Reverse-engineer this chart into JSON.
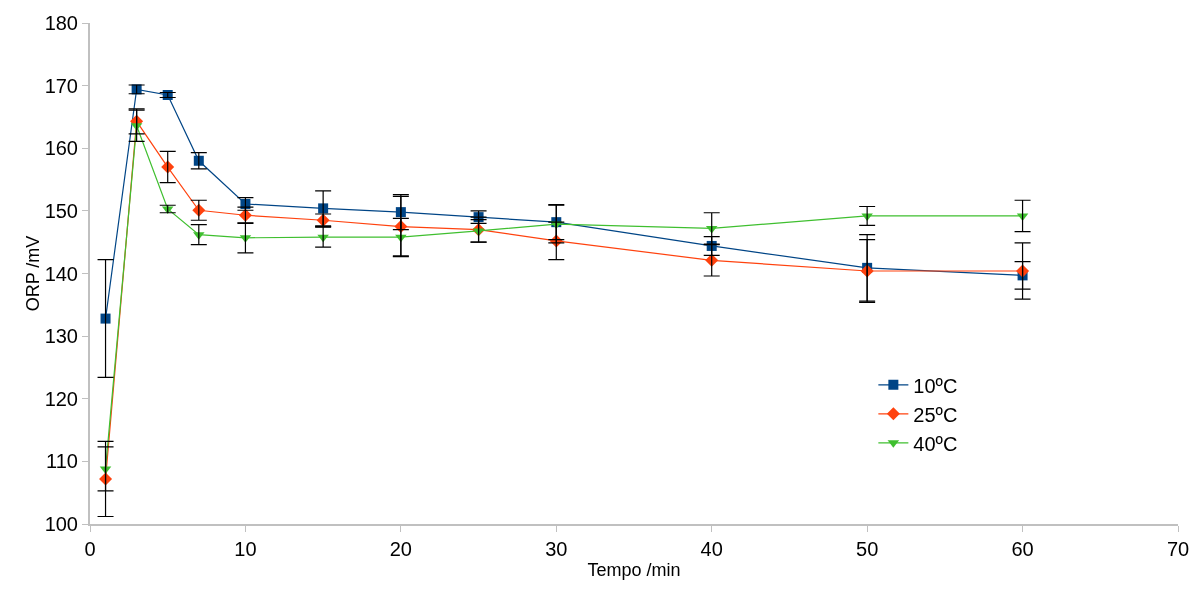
{
  "chart_data": {
    "type": "line",
    "xlabel": "Tempo /min",
    "ylabel": "ORP /mV",
    "x": [
      1,
      3,
      5,
      7,
      10,
      15,
      20,
      25,
      30,
      40,
      50,
      60
    ],
    "series": [
      {
        "name": "10ºC",
        "color": "#004586",
        "marker": "square",
        "values": [
          132.8,
          169.4,
          168.5,
          158.0,
          151.1,
          150.4,
          149.8,
          149.0,
          148.2,
          144.4,
          140.9,
          139.7
        ],
        "errors": [
          9.4,
          0.7,
          0.4,
          1.3,
          1.0,
          2.8,
          2.8,
          1.0,
          2.8,
          1.5,
          5.3,
          2.2
        ]
      },
      {
        "name": "25ºC",
        "color": "#ff420e",
        "marker": "diamond",
        "values": [
          107.2,
          164.3,
          157.0,
          150.1,
          149.3,
          148.5,
          147.5,
          147.0,
          145.2,
          142.1,
          140.4,
          140.4
        ],
        "errors": [
          6.0,
          2.0,
          2.5,
          1.6,
          1.3,
          1.0,
          4.8,
          2.0,
          3.0,
          2.5,
          5.0,
          4.5
        ]
      },
      {
        "name": "40ºC",
        "color": "#3fbf2f",
        "marker": "triangle",
        "values": [
          108.8,
          163.6,
          150.3,
          146.2,
          145.7,
          145.8,
          145.8,
          146.8,
          147.9,
          147.2,
          149.2,
          149.2
        ],
        "errors": [
          3.5,
          2.5,
          0.6,
          1.6,
          2.4,
          1.6,
          3.0,
          1.8,
          3.0,
          2.5,
          1.5,
          2.5
        ]
      }
    ],
    "xlim": [
      0,
      70
    ],
    "xticks": [
      0,
      10,
      20,
      30,
      40,
      50,
      60,
      70
    ],
    "ylim": [
      100,
      180
    ],
    "yticks": [
      100,
      110,
      120,
      130,
      140,
      150,
      160,
      170,
      180
    ],
    "grid": false,
    "legend": "right"
  }
}
